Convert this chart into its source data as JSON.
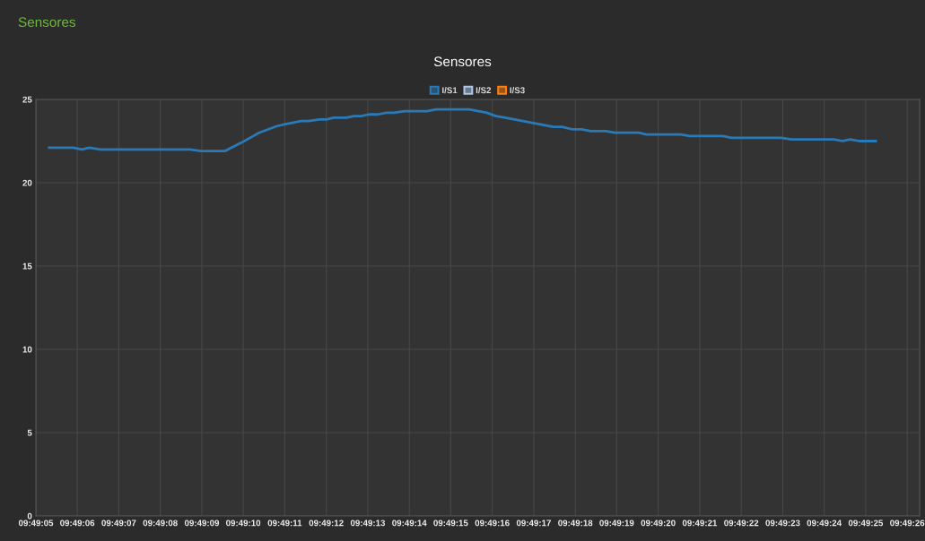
{
  "chart_data": {
    "type": "line",
    "title": "Sensores",
    "annotations": [
      "Sensores"
    ],
    "x": [
      9.818145,
      9.818306,
      9.818364,
      9.818414,
      9.818486,
      9.819089,
      9.819159,
      9.81932,
      9.819431,
      9.81955,
      9.81967,
      9.81972,
      9.819831,
      9.819881,
      9.819953,
      9.82,
      9.82005,
      9.820134,
      9.820184,
      9.820234,
      9.820284,
      9.820345,
      9.820403,
      9.820453,
      9.820525,
      9.820675,
      9.820736,
      9.820956,
      9.821075,
      9.821136,
      9.821198,
      9.821378,
      9.82152,
      9.821578,
      9.82165,
      9.821709,
      9.82177,
      9.82187,
      9.821931,
      9.822092,
      9.822142,
      9.822373,
      9.822431,
      9.822653,
      9.822714,
      9.823045,
      9.823114,
      9.823398,
      9.823456,
      9.823506,
      9.823567,
      9.823678
    ],
    "series": [
      {
        "name": "I/S1",
        "color": "#2a7ab8",
        "values": [
          22.1,
          22.1,
          22.0,
          22.1,
          22.0,
          22.0,
          21.9,
          21.9,
          22.4,
          23.0,
          23.4,
          23.5,
          23.7,
          23.7,
          23.8,
          23.8,
          23.9,
          23.9,
          24.0,
          24.0,
          24.1,
          24.1,
          24.2,
          24.2,
          24.3,
          24.3,
          24.4,
          24.4,
          24.2,
          24.0,
          23.9,
          23.6,
          23.35,
          23.35,
          23.2,
          23.2,
          23.1,
          23.1,
          23.0,
          23.0,
          22.9,
          22.9,
          22.8,
          22.8,
          22.7,
          22.7,
          22.6,
          22.6,
          22.5,
          22.6,
          22.5,
          22.5
        ]
      },
      {
        "name": "I/S2",
        "color": "#aec7e8",
        "values": [
          null,
          null,
          null,
          null,
          null,
          null,
          null,
          null,
          null,
          null,
          null,
          null,
          null,
          null,
          null,
          null,
          null,
          null,
          null,
          null,
          null,
          null,
          null,
          null,
          null,
          null,
          null,
          null,
          null,
          null,
          null,
          null,
          null,
          null,
          null,
          null,
          null,
          null,
          null,
          null,
          null,
          null,
          null,
          null,
          null,
          null,
          null,
          null,
          null,
          null,
          null,
          null
        ]
      },
      {
        "name": "I/S3",
        "color": "#ff7f0e",
        "values": [
          null,
          null,
          null,
          null,
          null,
          null,
          null,
          null,
          null,
          null,
          null,
          null,
          null,
          null,
          null,
          null,
          null,
          null,
          null,
          null,
          null,
          null,
          null,
          null,
          null,
          null,
          null,
          null,
          null,
          null,
          null,
          null,
          null,
          null,
          null,
          null,
          null,
          null,
          null,
          null,
          null,
          null,
          null,
          null,
          null,
          null,
          null,
          null,
          null,
          null,
          null,
          null
        ]
      }
    ],
    "xlim": [
      9.818056,
      9.823972
    ],
    "xticks": [
      {
        "value": 9.818056,
        "label": "09:49:05"
      },
      {
        "value": 9.818333,
        "label": "09:49:06"
      },
      {
        "value": 9.818611,
        "label": "09:49:07"
      },
      {
        "value": 9.818889,
        "label": "09:49:08"
      },
      {
        "value": 9.819167,
        "label": "09:49:09"
      },
      {
        "value": 9.819444,
        "label": "09:49:10"
      },
      {
        "value": 9.819722,
        "label": "09:49:11"
      },
      {
        "value": 9.82,
        "label": "09:49:12"
      },
      {
        "value": 9.820278,
        "label": "09:49:13"
      },
      {
        "value": 9.820556,
        "label": "09:49:14"
      },
      {
        "value": 9.820833,
        "label": "09:49:15"
      },
      {
        "value": 9.821111,
        "label": "09:49:16"
      },
      {
        "value": 9.821389,
        "label": "09:49:17"
      },
      {
        "value": 9.821667,
        "label": "09:49:18"
      },
      {
        "value": 9.821944,
        "label": "09:49:19"
      },
      {
        "value": 9.822222,
        "label": "09:49:20"
      },
      {
        "value": 9.8225,
        "label": "09:49:21"
      },
      {
        "value": 9.822778,
        "label": "09:49:22"
      },
      {
        "value": 9.823056,
        "label": "09:49:23"
      },
      {
        "value": 9.823333,
        "label": "09:49:24"
      },
      {
        "value": 9.823611,
        "label": "09:49:25"
      },
      {
        "value": 9.823889,
        "label": "09:49:26"
      }
    ],
    "ylim": [
      0,
      25
    ],
    "yticks": [
      0,
      5,
      10,
      15,
      20,
      25
    ],
    "grid": true,
    "legend": "top",
    "marker": "none",
    "line_style": "solid"
  }
}
